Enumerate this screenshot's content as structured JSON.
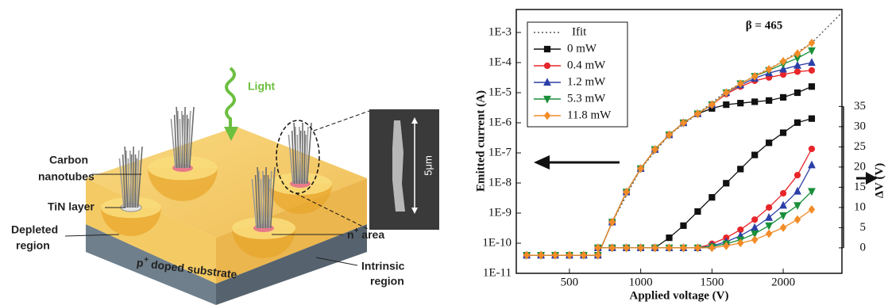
{
  "diagram": {
    "light": "Light",
    "carbon_nanotubes": [
      "Carbon",
      "nanotubes"
    ],
    "tin_layer": "TiN layer",
    "depleted_region": [
      "Depleted",
      "region"
    ],
    "substrate": {
      "base": "p",
      "sup": "+",
      "rest": " doped substrate"
    },
    "n_area": {
      "base": "n",
      "sup": "+",
      "rest": " area"
    },
    "intrinsic_region": [
      "Intrinsic",
      "region"
    ],
    "scale_bar": "5μm"
  },
  "chart_data": {
    "type": "line",
    "xlabel": "Applied voltage (V)",
    "ylabel": "Emitted current (A)",
    "y2label": "ΔV (V)",
    "annotation": "β = 465",
    "ylog": true,
    "legend": "upper left",
    "xlim": [
      127,
      2412
    ],
    "xticks": [
      500,
      1000,
      1500,
      2000
    ],
    "ylim": [
      1e-11,
      0.0058
    ],
    "yticks": [
      {
        "value": 1e-11,
        "label": "1E-11"
      },
      {
        "value": 1e-10,
        "label": "1E-10"
      },
      {
        "value": 1e-09,
        "label": "1E-9"
      },
      {
        "value": 1e-08,
        "label": "1E-8"
      },
      {
        "value": 1e-07,
        "label": "1E-7"
      },
      {
        "value": 1e-06,
        "label": "1E-6"
      },
      {
        "value": 1e-05,
        "label": "1E-5"
      },
      {
        "value": 0.0001,
        "label": "1E-4"
      },
      {
        "value": 0.001,
        "label": "1E-3"
      }
    ],
    "y2lim": [
      -6.3,
      59
    ],
    "y2ticks": [
      0,
      5,
      10,
      15,
      20,
      25,
      30,
      35
    ],
    "x": [
      200,
      300,
      400,
      500,
      600,
      700,
      800,
      900,
      1000,
      1100,
      1200,
      1300,
      1400,
      1500,
      1600,
      1700,
      1800,
      1900,
      2000,
      2100,
      2200
    ],
    "series": [
      {
        "name": "Ifit",
        "color": "#555555",
        "style": "dotted",
        "x": [
          800,
          1000,
          1200,
          1400,
          1600,
          1800,
          2000,
          2200,
          2400
        ],
        "values": [
          5e-10,
          3e-08,
          4e-07,
          2e-06,
          1.1e-05,
          3.6e-05,
          0.00011,
          0.00045,
          0.004
        ]
      },
      {
        "name": "0 mW",
        "color": "#111111",
        "marker": "square",
        "values": [
          4e-11,
          4e-11,
          4e-11,
          4e-11,
          4e-11,
          4e-11,
          5e-10,
          5e-09,
          3e-08,
          1.3e-07,
          4e-07,
          1e-06,
          2e-06,
          3e-06,
          4e-06,
          4.5e-06,
          5e-06,
          5.5e-06,
          7e-06,
          1e-05,
          1.6e-05
        ]
      },
      {
        "name": "0.4 mW",
        "color": "#e8262a",
        "marker": "circle",
        "values": [
          4e-11,
          4e-11,
          4e-11,
          4e-11,
          4e-11,
          4e-11,
          5e-10,
          5e-09,
          3e-08,
          1.3e-07,
          4e-07,
          1e-06,
          2e-06,
          4e-06,
          9e-06,
          1.6e-05,
          2.5e-05,
          3.2e-05,
          4e-05,
          5e-05,
          5.5e-05
        ]
      },
      {
        "name": "1.2 mW",
        "color": "#2c3fa8",
        "marker": "triangle-up",
        "values": [
          4e-11,
          4e-11,
          4e-11,
          4e-11,
          4e-11,
          4e-11,
          5e-10,
          5e-09,
          3e-08,
          1.3e-07,
          4e-07,
          1e-06,
          2e-06,
          4e-06,
          1e-05,
          1.8e-05,
          3e-05,
          4.5e-05,
          6e-05,
          8e-05,
          0.0001
        ]
      },
      {
        "name": "5.3 mW",
        "color": "#1a8f3a",
        "marker": "triangle-down",
        "values": [
          4e-11,
          4e-11,
          4e-11,
          4e-11,
          4e-11,
          4e-11,
          5e-10,
          5e-09,
          3e-08,
          1.3e-07,
          4e-07,
          1e-06,
          2e-06,
          4e-06,
          1e-05,
          2e-05,
          3.5e-05,
          5.5e-05,
          9e-05,
          0.00014,
          0.00025
        ]
      },
      {
        "name": "11.8 mW",
        "color": "#f28c28",
        "marker": "diamond",
        "values": [
          4e-11,
          4e-11,
          4e-11,
          4e-11,
          4e-11,
          4e-11,
          5e-10,
          5e-09,
          3e-08,
          1.3e-07,
          4e-07,
          1e-06,
          2e-06,
          4e-06,
          1e-05,
          2e-05,
          3.5e-05,
          6e-05,
          0.00011,
          0.0002,
          0.00045
        ]
      },
      {
        "axis": "y2",
        "color": "#111111",
        "marker": "square",
        "values": [
          null,
          null,
          null,
          null,
          null,
          0,
          0,
          0,
          0,
          0,
          2.5,
          5.5,
          9,
          12.5,
          16,
          19.5,
          23,
          26,
          28.5,
          31,
          32
        ]
      },
      {
        "axis": "y2",
        "color": "#e8262a",
        "marker": "circle",
        "values": [
          null,
          null,
          null,
          null,
          null,
          0,
          0,
          0,
          0,
          0,
          0,
          0,
          0,
          1,
          2.5,
          4.5,
          7,
          10,
          13.5,
          18,
          24.5
        ]
      },
      {
        "axis": "y2",
        "color": "#2c3fa8",
        "marker": "triangle-up",
        "values": [
          null,
          null,
          null,
          null,
          null,
          0,
          0,
          0,
          0,
          0,
          0,
          0,
          0,
          0.5,
          1.5,
          3,
          5,
          7.5,
          10.5,
          14,
          20.5
        ]
      },
      {
        "axis": "y2",
        "color": "#1a8f3a",
        "marker": "triangle-down",
        "values": [
          null,
          null,
          null,
          null,
          null,
          0,
          0,
          0,
          0,
          0,
          0,
          0,
          0,
          0.3,
          1,
          2,
          3.5,
          5.5,
          8,
          10.5,
          14
        ]
      },
      {
        "axis": "y2",
        "color": "#f28c28",
        "marker": "diamond",
        "values": [
          null,
          null,
          null,
          null,
          null,
          0,
          0,
          0,
          0,
          0,
          0,
          0,
          0,
          0,
          0.5,
          1.2,
          2,
          3.5,
          5,
          7,
          9.5
        ]
      }
    ]
  }
}
